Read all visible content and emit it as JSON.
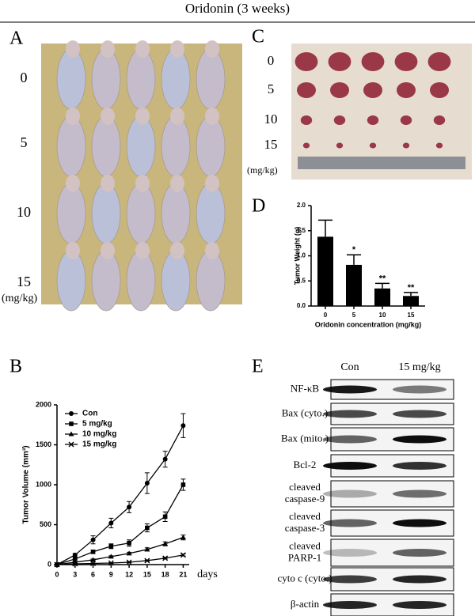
{
  "title": "Oridonin (3 weeks)",
  "panel_a": {
    "letter": "A",
    "doses": [
      "0",
      "5",
      "10",
      "15"
    ],
    "unit": "(mg/kg)"
  },
  "panel_c": {
    "letter": "C",
    "doses": [
      "0",
      "5",
      "10",
      "15"
    ],
    "unit": "(mg/kg)"
  },
  "chart_data": [
    {
      "type": "line",
      "panel": "B",
      "x_label": "days",
      "y_label": "Tumor Volume (mm³)",
      "x": [
        0,
        3,
        6,
        9,
        12,
        15,
        18,
        21
      ],
      "xlim": [
        0,
        22
      ],
      "xticks": [
        0,
        3,
        6,
        9,
        12,
        15,
        18,
        21
      ],
      "ylim": [
        0,
        2000
      ],
      "yticks": [
        0,
        500,
        1000,
        1500,
        2000
      ],
      "series": [
        {
          "name": "Con",
          "color": "#000000",
          "marker": "circle",
          "values": [
            0,
            120,
            310,
            520,
            720,
            1020,
            1320,
            1740
          ],
          "errors": [
            0,
            20,
            50,
            60,
            70,
            130,
            100,
            150
          ]
        },
        {
          "name": "5 mg/kg",
          "color": "#000000",
          "marker": "square",
          "values": [
            0,
            70,
            160,
            230,
            270,
            460,
            600,
            1000
          ],
          "errors": [
            0,
            10,
            20,
            30,
            40,
            50,
            60,
            70
          ]
        },
        {
          "name": "10 mg/kg",
          "color": "#000000",
          "marker": "triangle",
          "values": [
            0,
            30,
            60,
            100,
            140,
            190,
            260,
            340
          ],
          "errors": [
            0,
            5,
            10,
            10,
            15,
            20,
            25,
            30
          ]
        },
        {
          "name": "15 mg/kg",
          "color": "#000000",
          "marker": "x",
          "values": [
            0,
            10,
            15,
            20,
            30,
            50,
            80,
            120
          ],
          "errors": [
            0,
            3,
            4,
            5,
            6,
            8,
            10,
            12
          ]
        }
      ]
    },
    {
      "type": "bar",
      "panel": "D",
      "x_label": "Oridonin concentration (mg/kg)",
      "y_label": "Tumor Weight (g)",
      "categories": [
        "0",
        "5",
        "10",
        "15"
      ],
      "values": [
        1.38,
        0.82,
        0.35,
        0.2
      ],
      "errors": [
        0.33,
        0.2,
        0.1,
        0.07
      ],
      "significance": [
        null,
        "*",
        "**",
        "**"
      ],
      "color": "#000000",
      "ylim": [
        0,
        2
      ],
      "yticks": [
        {
          "value": 0,
          "label": "0.0"
        },
        0.5,
        {
          "value": 1,
          "label": "1.0"
        },
        1.5,
        {
          "value": 2,
          "label": "2.0"
        }
      ]
    }
  ],
  "panel_e": {
    "letter": "E",
    "columns": [
      "Con",
      "15 mg/kg"
    ],
    "rows": [
      [
        "NF-κB"
      ],
      [
        "Bax (cyto.)"
      ],
      [
        "Bax (mito.)"
      ],
      [
        "Bcl-2"
      ],
      [
        "cleaved",
        "caspase-9"
      ],
      [
        "cleaved",
        "caspase-3"
      ],
      [
        "cleaved",
        "PARP-1"
      ],
      [
        "cyto c (cyto.)"
      ],
      [
        "β-actin"
      ]
    ]
  }
}
